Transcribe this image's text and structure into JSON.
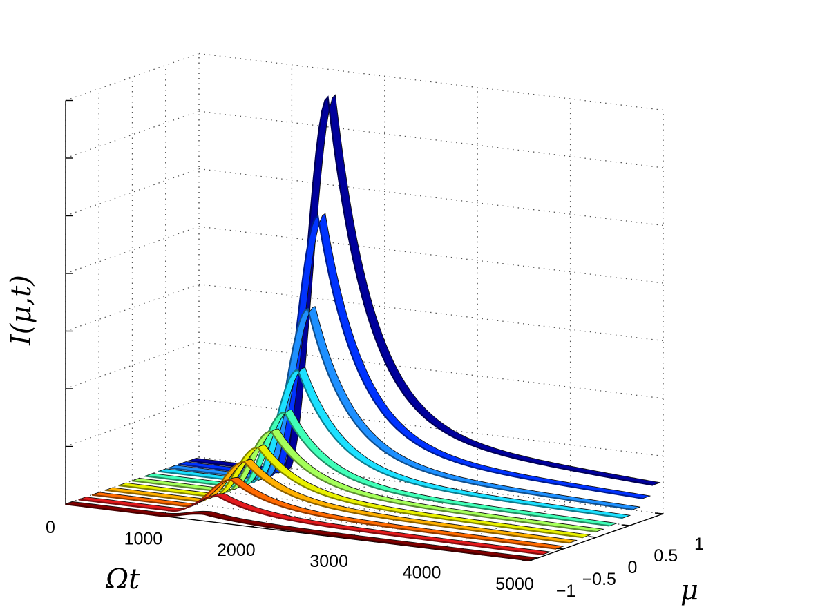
{
  "chart_data": {
    "type": "3d-ribbon",
    "xlabel": "Ωt",
    "ylabel": "μ",
    "zlabel": "I(μ,t)",
    "xlim": [
      0,
      5000
    ],
    "ylim": [
      -1,
      1
    ],
    "zlim": [
      0,
      7
    ],
    "x_ticks": [
      0,
      1000,
      2000,
      3000,
      4000,
      5000
    ],
    "x_tick_labels": [
      "0",
      "1000",
      "2000",
      "3000",
      "4000",
      "5000"
    ],
    "y_ticks": [
      -1,
      -0.5,
      0,
      0.5,
      1
    ],
    "y_tick_labels": [
      "−1",
      "−0.5",
      "0",
      "0.5",
      "1"
    ],
    "z_ticks": [
      0,
      1,
      2,
      3,
      4,
      5,
      6,
      7
    ],
    "grid": true,
    "series": [
      {
        "mu": -0.95,
        "peak": 0.12,
        "color": "#800000"
      },
      {
        "mu": -0.75,
        "peak": 0.35,
        "color": "#e31a1c"
      },
      {
        "mu": -0.55,
        "peak": 0.55,
        "color": "#ff6a00"
      },
      {
        "mu": -0.35,
        "peak": 0.78,
        "color": "#ffb000"
      },
      {
        "mu": -0.15,
        "peak": 0.95,
        "color": "#e8f000"
      },
      {
        "mu": 0.05,
        "peak": 1.15,
        "color": "#a5ff5a"
      },
      {
        "mu": 0.25,
        "peak": 1.4,
        "color": "#40ffb8"
      },
      {
        "mu": 0.45,
        "peak": 2.05,
        "color": "#1ce0ff"
      },
      {
        "mu": 0.6,
        "peak": 3.05,
        "color": "#1e90ff"
      },
      {
        "mu": 0.75,
        "peak": 4.6,
        "color": "#0033ff"
      },
      {
        "mu": 0.9,
        "peak": 6.6,
        "color": "#00009c"
      }
    ],
    "profile": {
      "shape": "rise-then-decay",
      "rise_start": 1000,
      "peak_x": 1500,
      "decay_tau": 420,
      "tail_fraction": 0.13
    }
  }
}
